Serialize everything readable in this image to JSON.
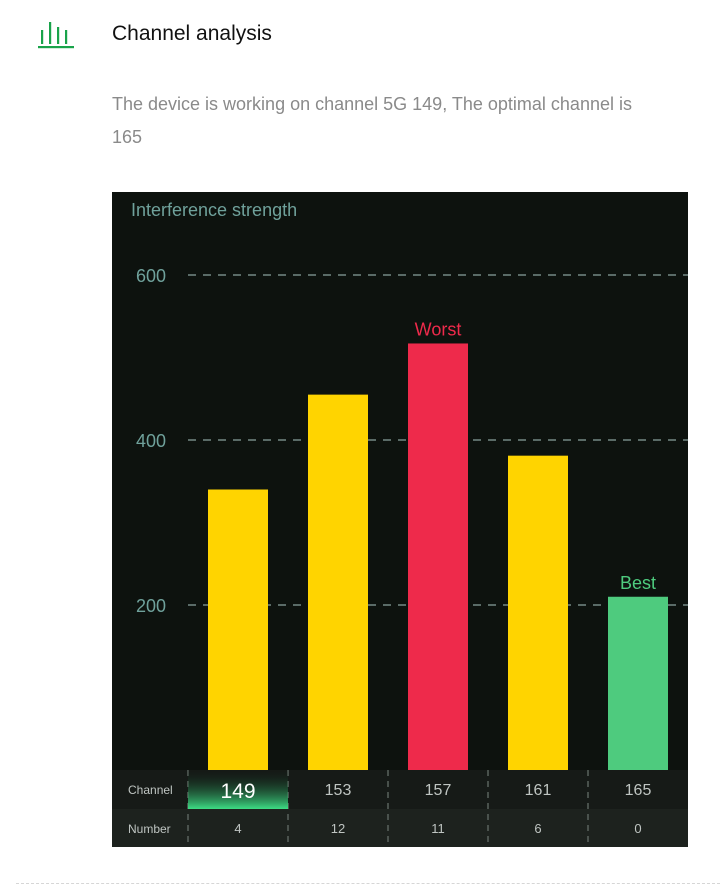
{
  "header": {
    "icon": "bar-chart-icon",
    "title": "Channel analysis",
    "accent_color": "#19a34a"
  },
  "description": "The device is working on channel 5G 149, The optimal channel is 165",
  "chart_data": {
    "type": "bar",
    "title": "Interference strength",
    "categories": [
      "149",
      "153",
      "157",
      "161",
      "165"
    ],
    "values": [
      340,
      455,
      517,
      381,
      210
    ],
    "ylim": [
      0,
      600
    ],
    "yticks": [
      200,
      400,
      600
    ],
    "grid": true,
    "bar_colors": [
      "#ffd400",
      "#ffd400",
      "#ee2a4b",
      "#ffd400",
      "#4ecb7e"
    ],
    "annotations": [
      {
        "category": "157",
        "text": "Worst",
        "color": "#ee2a4b"
      },
      {
        "category": "165",
        "text": "Best",
        "color": "#4ecb7e"
      }
    ],
    "table": {
      "row_labels": [
        "Channel",
        "Number"
      ],
      "numbers": [
        4,
        12,
        11,
        6,
        0
      ],
      "current_channel": "149"
    }
  },
  "colors": {
    "panel_background": "#0d120e",
    "axis_text": "#6fa19b",
    "gridline": "#5a6b67",
    "table_text": "#bfc5c2",
    "current_highlight": "#3ddc84"
  }
}
